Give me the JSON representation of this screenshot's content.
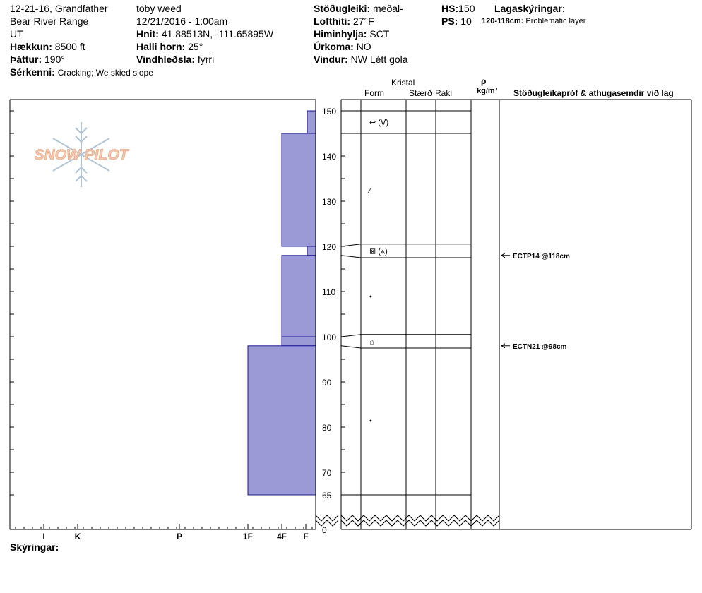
{
  "header": {
    "col1": {
      "title": "12-21-16, Grandfather",
      "range": "Bear River Range",
      "state": "UT",
      "elevation_label": "Hækkun:",
      "elevation_value": "8500 ft",
      "aspect_label": "Þáttur:",
      "aspect_value": "190°",
      "features_label": "Sérkenni:",
      "features_value": "Cracking;  We skied slope"
    },
    "col2": {
      "observer": "toby weed",
      "datetime": "12/21/2016 - 1:00am",
      "coords_label": "Hnit:",
      "coords_value": "41.88513N, -111.65895W",
      "slope_label": "Halli horn:",
      "slope_value": "25°",
      "windload_label": "Vindhleðsla:",
      "windload_value": "fyrri"
    },
    "col3": {
      "stability_label": "Stöðugleiki:",
      "stability_value": "meðal-",
      "airtemp_label": "Lofthiti:",
      "airtemp_value": "27°F",
      "sky_label": "Himinhylja:",
      "sky_value": "SCT",
      "precip_label": "Úrkoma:",
      "precip_value": "NO",
      "wind_label": "Vindur:",
      "wind_value": "NW Létt gola"
    },
    "col4": {
      "hs_label": "HS:",
      "hs_value": "150",
      "ps_label": "PS:",
      "ps_value": "10",
      "layers_label": "Lagaskýringar:",
      "layer_note_range": "120-118cm:",
      "layer_note_text": "Problematic layer"
    }
  },
  "columns": {
    "kristal": "Kristal",
    "form": "Form",
    "size": "Stærð",
    "moisture": "Raki",
    "rho": "ρ",
    "density_unit": "kg/m³",
    "tests_header": "Stöðugleikapróf & athugasemdir við lag"
  },
  "logo_text": "SNOW PILOT",
  "legend_label": "Skýringar:",
  "chart_data": {
    "type": "snow-profile",
    "y_axis_ticks": [
      150,
      140,
      130,
      120,
      110,
      100,
      90,
      80,
      70,
      65,
      0
    ],
    "hardness_scale": [
      "I",
      "K",
      "P",
      "1F",
      "4F",
      "F"
    ],
    "hardness_layers": [
      {
        "top": 150,
        "bottom": 145,
        "hardness": "F+"
      },
      {
        "top": 145,
        "bottom": 120,
        "hardness": "4F"
      },
      {
        "top": 120,
        "bottom": 118,
        "hardness": "F+"
      },
      {
        "top": 118,
        "bottom": 100,
        "hardness": "4F"
      },
      {
        "top": 100,
        "bottom": 98,
        "hardness": "4F"
      },
      {
        "top": 98,
        "bottom": 65,
        "hardness": "1F"
      }
    ],
    "layer_boundaries": [
      150,
      145,
      120.5,
      117.5,
      100.5,
      97.5,
      65
    ],
    "form_symbols": [
      {
        "height": 147.5,
        "symbol": "↩ (∀)"
      },
      {
        "height": 132.5,
        "symbol": "⁄"
      },
      {
        "height": 119,
        "symbol": "⊠ (⩚)"
      },
      {
        "height": 109,
        "symbol": "•"
      },
      {
        "height": 99,
        "symbol": "⌂"
      },
      {
        "height": 81.5,
        "symbol": "•"
      }
    ],
    "test_results": [
      {
        "height": 118,
        "label": "ECTP14 @118cm"
      },
      {
        "height": 98,
        "label": "ECTN21 @98cm"
      }
    ]
  }
}
